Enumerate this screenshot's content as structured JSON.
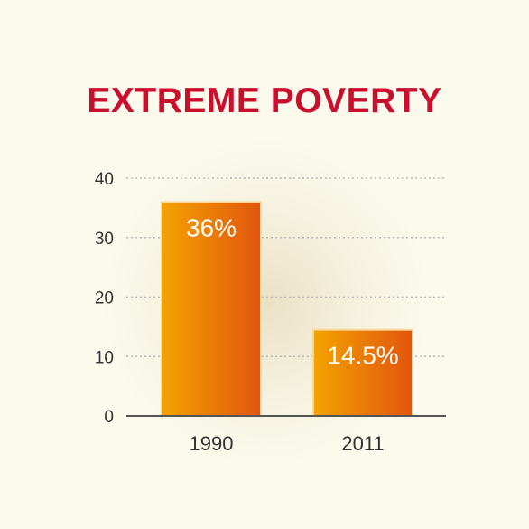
{
  "chart_data": {
    "type": "bar",
    "title": "EXTREME POVERTY",
    "categories": [
      "1990",
      "2011"
    ],
    "values": [
      36,
      14.5
    ],
    "data_labels": [
      "36%",
      "14.5%"
    ],
    "ylim": [
      0,
      40
    ],
    "yticks": [
      "0",
      "10",
      "20",
      "30",
      "40"
    ],
    "xlabel": "",
    "ylabel": "",
    "grid": true,
    "colors": {
      "title": "#c8102e",
      "bar_light": "#f3a300",
      "bar_dark": "#e2550e",
      "bar_edge": "#f9d8a0",
      "grid": "#b9b9b9",
      "axis": "#555555"
    }
  }
}
